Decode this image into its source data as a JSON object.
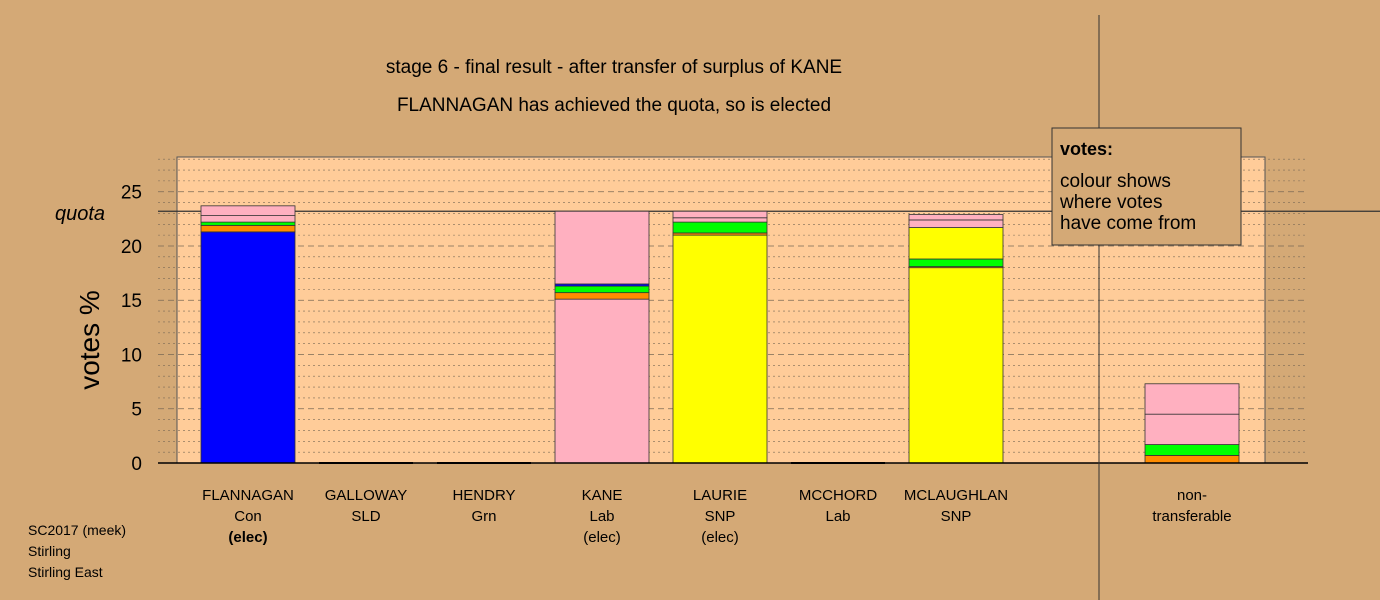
{
  "chart_data": {
    "type": "bar",
    "stacked": true,
    "title": "stage 6 - final result - after transfer of surplus of KANE",
    "subtitle": "FLANNAGAN has achieved the quota, so is elected",
    "ylabel": "votes %",
    "ylim": [
      0,
      28.2
    ],
    "yticks": [
      0,
      5,
      10,
      15,
      20,
      25
    ],
    "quota": 23.2,
    "quota_label": "quota",
    "grid": "dotted-minor, dashed-major",
    "legend": {
      "position": "top-right",
      "title": "votes:",
      "lines": [
        "colour shows",
        "where votes",
        "have come from"
      ]
    },
    "colors": {
      "Con": "#0000ff",
      "Lab": "#ffb0c0",
      "SNP": "#ffff00",
      "Grn": "#00ff00",
      "SLD": "#ff8c00",
      "bar_bg": "#ffcc99",
      "bg": "#d4a976"
    },
    "candidates": [
      {
        "name": "FLANNAGAN",
        "party": "Con",
        "status": "(elec)",
        "status_bold": true,
        "segments": [
          {
            "from": "Con",
            "value": 21.3
          },
          {
            "from": "SLD",
            "value": 0.6
          },
          {
            "from": "Grn",
            "value": 0.3
          },
          {
            "from": "Lab",
            "value": 0.6
          },
          {
            "from": "Lab",
            "value": 0.9
          }
        ]
      },
      {
        "name": "GALLOWAY",
        "party": "SLD",
        "status": "",
        "segments": []
      },
      {
        "name": "HENDRY",
        "party": "Grn",
        "status": "",
        "segments": []
      },
      {
        "name": "KANE",
        "party": "Lab",
        "status": "(elec)",
        "segments": [
          {
            "from": "Lab",
            "value": 15.1
          },
          {
            "from": "SLD",
            "value": 0.6
          },
          {
            "from": "Grn",
            "value": 0.6
          },
          {
            "from": "Con",
            "value": 0.2
          },
          {
            "from": "Lab",
            "value": 6.7
          }
        ]
      },
      {
        "name": "LAURIE",
        "party": "SNP",
        "status": "(elec)",
        "segments": [
          {
            "from": "SNP",
            "value": 21.0
          },
          {
            "from": "SLD",
            "value": 0.2
          },
          {
            "from": "Grn",
            "value": 1.0
          },
          {
            "from": "Lab",
            "value": 0.4
          },
          {
            "from": "Lab",
            "value": 0.6
          }
        ]
      },
      {
        "name": "MCCHORD",
        "party": "Lab",
        "status": "",
        "segments": []
      },
      {
        "name": "MCLAUGHLAN",
        "party": "SNP",
        "status": "",
        "segments": [
          {
            "from": "SNP",
            "value": 18.0
          },
          {
            "from": "SLD",
            "value": 0.1
          },
          {
            "from": "Grn",
            "value": 0.7
          },
          {
            "from": "SNP",
            "value": 2.9
          },
          {
            "from": "Lab",
            "value": 0.7
          },
          {
            "from": "Lab",
            "value": 0.5
          }
        ]
      },
      {
        "name": "",
        "party": "",
        "status": "",
        "segments": []
      },
      {
        "name": "non-",
        "party": "transferable",
        "status": "",
        "segments": [
          {
            "from": "SLD",
            "value": 0.7
          },
          {
            "from": "Grn",
            "value": 1.0
          },
          {
            "from": "Lab",
            "value": 2.8
          },
          {
            "from": "Lab",
            "value": 2.8
          }
        ]
      }
    ]
  },
  "footer": {
    "lines": [
      "SC2017 (meek)",
      "Stirling",
      "Stirling East"
    ]
  }
}
